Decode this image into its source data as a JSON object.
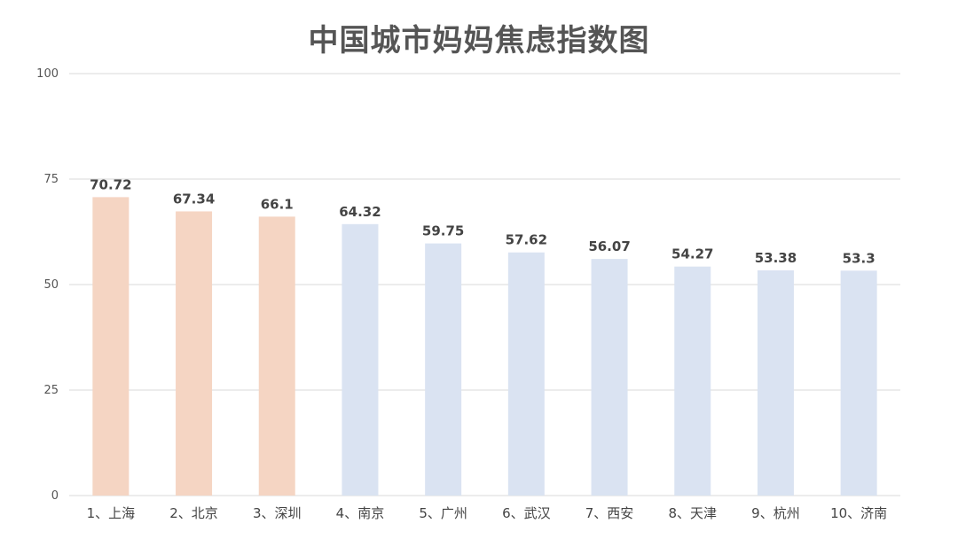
{
  "chart_data": {
    "type": "bar",
    "title": "中国城市妈妈焦虑指数图",
    "xlabel": "",
    "ylabel": "",
    "ylim": [
      0,
      100
    ],
    "yticks": [
      0,
      25,
      50,
      75,
      100
    ],
    "grid": true,
    "categories": [
      "1、上海",
      "2、北京",
      "3、深圳",
      "4、南京",
      "5、广州",
      "6、武汉",
      "7、西安",
      "8、天津",
      "9、杭州",
      "10、济南"
    ],
    "values": [
      70.72,
      67.34,
      66.1,
      64.32,
      59.75,
      57.62,
      56.07,
      54.27,
      53.38,
      53.3
    ],
    "value_labels": [
      "70.72",
      "67.34",
      "66.1",
      "64.32",
      "59.75",
      "57.62",
      "56.07",
      "54.27",
      "53.38",
      "53.3"
    ],
    "bar_colors": [
      "#f5d5c3",
      "#f5d5c3",
      "#f5d5c3",
      "#dae3f2",
      "#dae3f2",
      "#dae3f2",
      "#dae3f2",
      "#dae3f2",
      "#dae3f2",
      "#dae3f2"
    ],
    "gridline_color": "#d9d9d9"
  }
}
